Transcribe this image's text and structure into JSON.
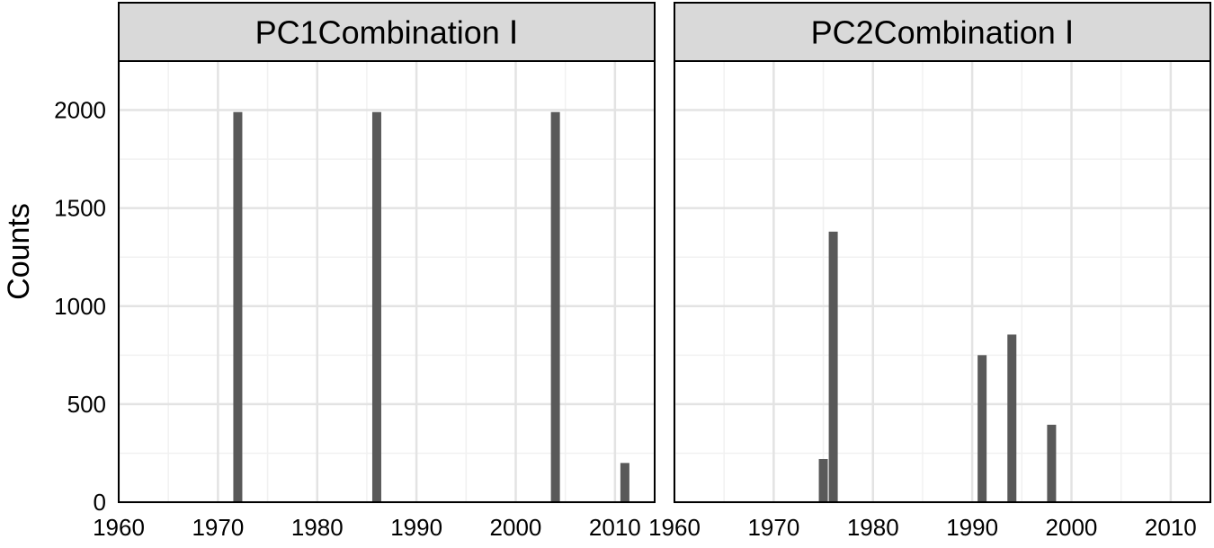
{
  "chart_data": {
    "type": "bar",
    "ylabel": "Counts",
    "xlabel": "",
    "xlim": [
      1960,
      2014
    ],
    "ylim": [
      0,
      2250
    ],
    "x_ticks": [
      1960,
      1970,
      1980,
      1990,
      2000,
      2010
    ],
    "y_ticks": [
      0,
      500,
      1000,
      1500,
      2000
    ],
    "grid": true,
    "bar_color": "#595959",
    "strip_color": "#d9d9d9",
    "panels": [
      {
        "title": "PC1Combination Ⅰ",
        "bars": [
          {
            "x": 1972,
            "y": 1990
          },
          {
            "x": 1986,
            "y": 1990
          },
          {
            "x": 2004,
            "y": 1990
          },
          {
            "x": 2011,
            "y": 200
          }
        ]
      },
      {
        "title": "PC2Combination Ⅰ",
        "bars": [
          {
            "x": 1975,
            "y": 220
          },
          {
            "x": 1976,
            "y": 1380
          },
          {
            "x": 1991,
            "y": 750
          },
          {
            "x": 1994,
            "y": 855
          },
          {
            "x": 1998,
            "y": 395
          }
        ]
      }
    ]
  }
}
